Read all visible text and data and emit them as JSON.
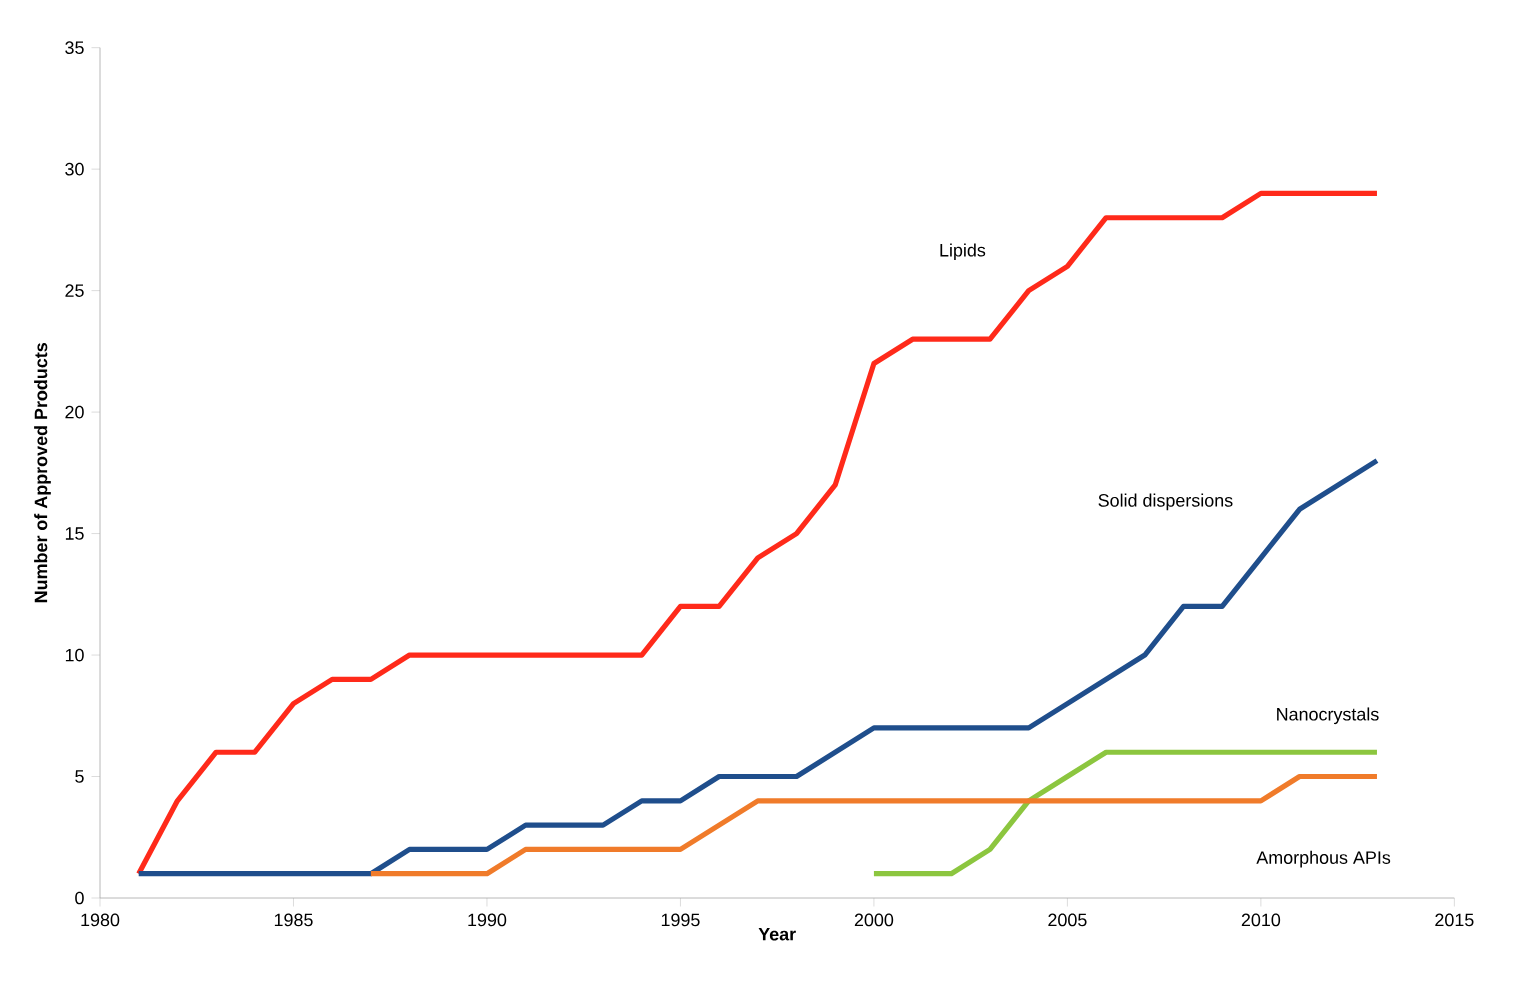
{
  "chart_data": {
    "type": "line",
    "xlabel": "Year",
    "ylabel": "Number of Approved Products",
    "xlim": [
      1980,
      2015
    ],
    "xticks": [
      1980,
      1985,
      1990,
      1995,
      2000,
      2005,
      2010,
      2015
    ],
    "ylim": [
      0,
      35
    ],
    "yticks": [
      0,
      5,
      10,
      15,
      20,
      25,
      30,
      35
    ],
    "grid": false,
    "legend": false,
    "marker": "none",
    "line_style": "solid",
    "series": [
      {
        "name": "Lipids",
        "color": "#ff2a1a",
        "x": [
          1981,
          1982,
          1983,
          1984,
          1985,
          1986,
          1987,
          1988,
          1989,
          1990,
          1991,
          1992,
          1993,
          1994,
          1995,
          1996,
          1997,
          1998,
          1999,
          2000,
          2001,
          2002,
          2003,
          2004,
          2005,
          2006,
          2007,
          2008,
          2009,
          2010,
          2011,
          2012,
          2013
        ],
        "values": [
          1,
          4,
          6,
          6,
          8,
          9,
          9,
          10,
          10,
          10,
          10,
          10,
          10,
          10,
          12,
          12,
          14,
          15,
          17,
          22,
          23,
          23,
          23,
          25,
          26,
          28,
          28,
          28,
          28,
          29,
          29,
          29,
          29
        ]
      },
      {
        "name": "Solid dispersions",
        "color": "#1f4e8c",
        "x": [
          1981,
          1982,
          1983,
          1984,
          1985,
          1986,
          1987,
          1988,
          1989,
          1990,
          1991,
          1992,
          1993,
          1994,
          1995,
          1996,
          1997,
          1998,
          1999,
          2000,
          2001,
          2002,
          2003,
          2004,
          2005,
          2006,
          2007,
          2008,
          2009,
          2010,
          2011,
          2012,
          2013
        ],
        "values": [
          1,
          1,
          1,
          1,
          1,
          1,
          1,
          2,
          2,
          2,
          3,
          3,
          3,
          4,
          4,
          5,
          5,
          5,
          6,
          7,
          7,
          7,
          7,
          7,
          8,
          9,
          10,
          12,
          12,
          14,
          16,
          17,
          18
        ]
      },
      {
        "name": "Nanocrystals",
        "color": "#8cc63f",
        "x": [
          2000,
          2001,
          2002,
          2003,
          2004,
          2005,
          2006,
          2007,
          2008,
          2009,
          2010,
          2011,
          2012,
          2013
        ],
        "values": [
          1,
          1,
          1,
          2,
          4,
          5,
          6,
          6,
          6,
          6,
          6,
          6,
          6,
          6
        ]
      },
      {
        "name": "Amorphous APIs",
        "color": "#f07b2a",
        "x": [
          1987,
          1988,
          1989,
          1990,
          1991,
          1992,
          1993,
          1994,
          1995,
          1996,
          1997,
          1998,
          1999,
          2000,
          2001,
          2002,
          2003,
          2004,
          2005,
          2006,
          2007,
          2008,
          2009,
          2010,
          2011,
          2012,
          2013
        ],
        "values": [
          1,
          1,
          1,
          1,
          2,
          2,
          2,
          2,
          2,
          3,
          4,
          4,
          4,
          4,
          4,
          4,
          4,
          4,
          4,
          4,
          4,
          4,
          4,
          4,
          5,
          5,
          5
        ]
      }
    ]
  }
}
